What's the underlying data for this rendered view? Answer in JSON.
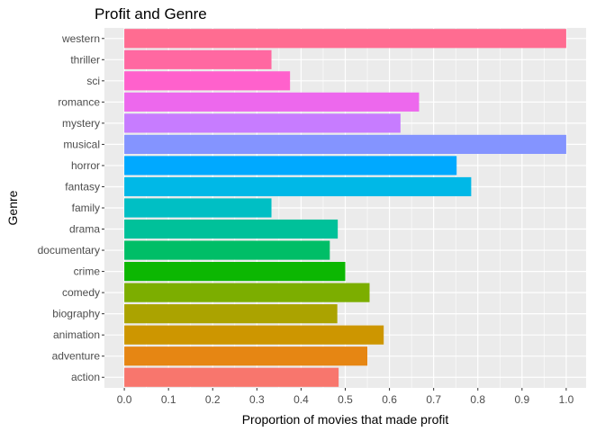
{
  "chart_data": {
    "type": "bar",
    "orientation": "horizontal",
    "title": "Profit and Genre",
    "xlabel": "Proportion of movies that made profit",
    "ylabel": "Genre",
    "xlim": [
      -0.045,
      1.045
    ],
    "x_ticks": [
      "0.0",
      "0.1",
      "0.2",
      "0.3",
      "0.4",
      "0.5",
      "0.6",
      "0.7",
      "0.8",
      "0.9",
      "1.0"
    ],
    "grid": true,
    "legend": "none",
    "background": "#EBEBEB",
    "categories": [
      "action",
      "adventure",
      "animation",
      "biography",
      "comedy",
      "crime",
      "documentary",
      "drama",
      "family",
      "fantasy",
      "horror",
      "musical",
      "mystery",
      "romance",
      "sci",
      "thriller",
      "western"
    ],
    "values": [
      0.485,
      0.55,
      0.587,
      0.482,
      0.555,
      0.5,
      0.465,
      0.483,
      0.333,
      0.785,
      0.752,
      1.0,
      0.625,
      0.667,
      0.375,
      0.333,
      1.0
    ],
    "colors": [
      "#F8766D",
      "#E68613",
      "#CD9600",
      "#ABA300",
      "#7CAE00",
      "#0CB702",
      "#00BE67",
      "#00C19A",
      "#00BFC4",
      "#00B8E7",
      "#00A9FF",
      "#8494FF",
      "#C77CFF",
      "#ED68ED",
      "#FF61CC",
      "#FF68A1",
      "#FF6C91"
    ]
  }
}
